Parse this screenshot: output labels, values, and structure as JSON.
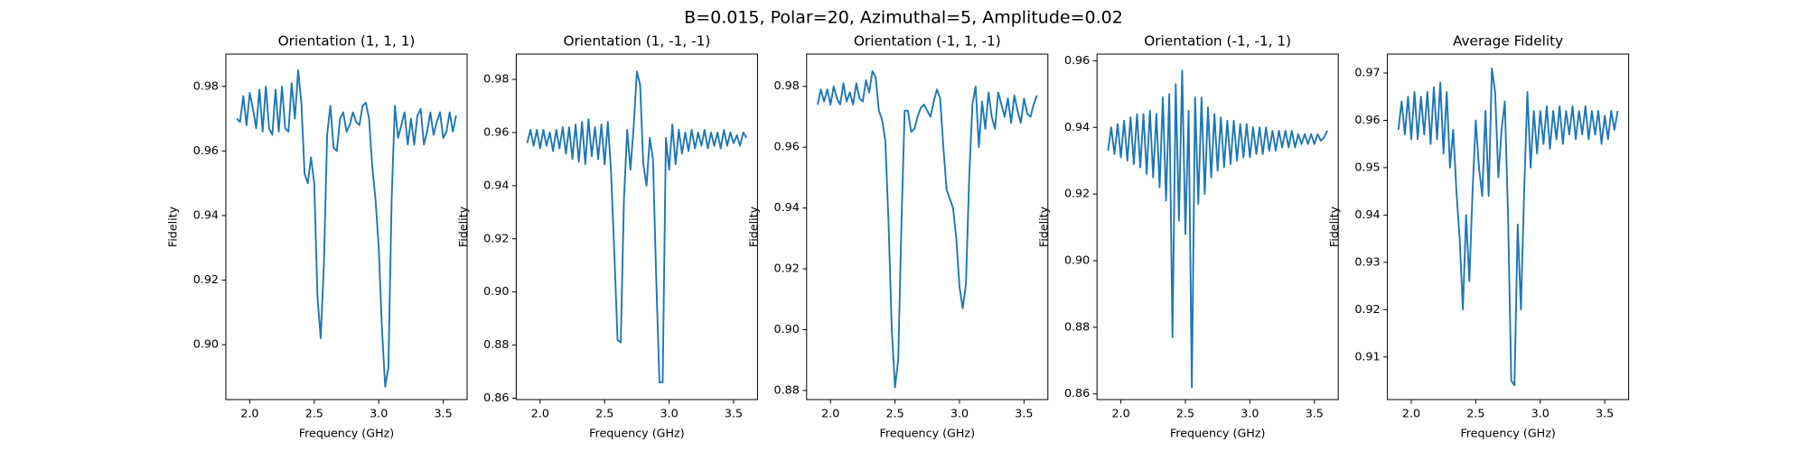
{
  "title": "B=0.015, Polar=20, Azimuthal=5, Amplitude=0.02",
  "chart_data": [
    {
      "type": "line",
      "title": "Orientation (1, 1, 1)",
      "xlabel": "Frequency (GHz)",
      "ylabel": "Fidelity",
      "color": "#1f77b4",
      "x": [
        1.9,
        1.925,
        1.95,
        1.975,
        2.0,
        2.025,
        2.05,
        2.075,
        2.1,
        2.125,
        2.15,
        2.175,
        2.2,
        2.225,
        2.25,
        2.275,
        2.3,
        2.325,
        2.35,
        2.375,
        2.4,
        2.425,
        2.45,
        2.475,
        2.5,
        2.525,
        2.55,
        2.575,
        2.6,
        2.625,
        2.65,
        2.675,
        2.7,
        2.725,
        2.75,
        2.775,
        2.8,
        2.825,
        2.85,
        2.875,
        2.9,
        2.925,
        2.95,
        2.975,
        3.0,
        3.025,
        3.05,
        3.075,
        3.1,
        3.125,
        3.15,
        3.175,
        3.2,
        3.225,
        3.25,
        3.275,
        3.3,
        3.325,
        3.35,
        3.375,
        3.4,
        3.425,
        3.45,
        3.475,
        3.5,
        3.525,
        3.55,
        3.575,
        3.6
      ],
      "values": [
        0.97,
        0.969,
        0.977,
        0.968,
        0.978,
        0.973,
        0.967,
        0.979,
        0.966,
        0.98,
        0.967,
        0.965,
        0.979,
        0.966,
        0.98,
        0.967,
        0.966,
        0.981,
        0.97,
        0.985,
        0.975,
        0.953,
        0.95,
        0.958,
        0.95,
        0.915,
        0.902,
        0.925,
        0.965,
        0.974,
        0.961,
        0.96,
        0.97,
        0.972,
        0.966,
        0.968,
        0.972,
        0.969,
        0.968,
        0.974,
        0.975,
        0.97,
        0.955,
        0.945,
        0.93,
        0.905,
        0.887,
        0.893,
        0.945,
        0.974,
        0.964,
        0.968,
        0.972,
        0.962,
        0.97,
        0.962,
        0.971,
        0.973,
        0.962,
        0.966,
        0.972,
        0.965,
        0.969,
        0.972,
        0.964,
        0.966,
        0.972,
        0.966,
        0.971
      ],
      "xlim": [
        1.815,
        3.685
      ],
      "xticks": [
        {
          "value": 2,
          "label": "2.0"
        },
        2.5,
        {
          "value": 3,
          "label": "3.0"
        },
        3.5
      ],
      "ylim": [
        0.883,
        0.99
      ],
      "yticks": [
        {
          "value": 0.9,
          "label": "0.90"
        },
        0.92,
        0.94,
        0.96,
        0.98
      ]
    },
    {
      "type": "line",
      "title": "Orientation (1, -1, -1)",
      "xlabel": "Frequency (GHz)",
      "ylabel": "Fidelity",
      "color": "#1f77b4",
      "x": [
        1.9,
        1.925,
        1.95,
        1.975,
        2.0,
        2.025,
        2.05,
        2.075,
        2.1,
        2.125,
        2.15,
        2.175,
        2.2,
        2.225,
        2.25,
        2.275,
        2.3,
        2.325,
        2.35,
        2.375,
        2.4,
        2.425,
        2.45,
        2.475,
        2.5,
        2.525,
        2.55,
        2.575,
        2.6,
        2.625,
        2.65,
        2.675,
        2.7,
        2.725,
        2.75,
        2.775,
        2.8,
        2.825,
        2.85,
        2.875,
        2.9,
        2.925,
        2.95,
        2.975,
        3.0,
        3.025,
        3.05,
        3.075,
        3.1,
        3.125,
        3.15,
        3.175,
        3.2,
        3.225,
        3.25,
        3.275,
        3.3,
        3.325,
        3.35,
        3.375,
        3.4,
        3.425,
        3.45,
        3.475,
        3.5,
        3.525,
        3.55,
        3.575,
        3.6
      ],
      "values": [
        0.956,
        0.961,
        0.955,
        0.961,
        0.954,
        0.961,
        0.955,
        0.96,
        0.953,
        0.961,
        0.954,
        0.962,
        0.952,
        0.962,
        0.95,
        0.963,
        0.949,
        0.964,
        0.948,
        0.965,
        0.951,
        0.962,
        0.95,
        0.963,
        0.948,
        0.964,
        0.945,
        0.915,
        0.882,
        0.881,
        0.935,
        0.961,
        0.946,
        0.962,
        0.983,
        0.978,
        0.948,
        0.94,
        0.958,
        0.95,
        0.905,
        0.866,
        0.866,
        0.958,
        0.946,
        0.963,
        0.948,
        0.961,
        0.952,
        0.96,
        0.953,
        0.961,
        0.954,
        0.96,
        0.955,
        0.961,
        0.954,
        0.96,
        0.955,
        0.96,
        0.954,
        0.961,
        0.955,
        0.96,
        0.956,
        0.959,
        0.955,
        0.96,
        0.958
      ],
      "xlim": [
        1.815,
        3.685
      ],
      "xticks": [
        {
          "value": 2,
          "label": "2.0"
        },
        2.5,
        {
          "value": 3,
          "label": "3.0"
        },
        3.5
      ],
      "ylim": [
        0.8595,
        0.9895
      ],
      "yticks": [
        0.86,
        0.88,
        {
          "value": 0.9,
          "label": "0.90"
        },
        0.92,
        0.94,
        0.96,
        0.98
      ]
    },
    {
      "type": "line",
      "title": "Orientation (-1, 1, -1)",
      "xlabel": "Frequency (GHz)",
      "ylabel": "Fidelity",
      "color": "#1f77b4",
      "x": [
        1.9,
        1.925,
        1.95,
        1.975,
        2.0,
        2.025,
        2.05,
        2.075,
        2.1,
        2.125,
        2.15,
        2.175,
        2.2,
        2.225,
        2.25,
        2.275,
        2.3,
        2.325,
        2.35,
        2.375,
        2.4,
        2.425,
        2.45,
        2.475,
        2.5,
        2.525,
        2.55,
        2.575,
        2.6,
        2.625,
        2.65,
        2.675,
        2.7,
        2.725,
        2.75,
        2.775,
        2.8,
        2.825,
        2.85,
        2.875,
        2.9,
        2.925,
        2.95,
        2.975,
        3.0,
        3.025,
        3.05,
        3.075,
        3.1,
        3.125,
        3.15,
        3.175,
        3.2,
        3.225,
        3.25,
        3.275,
        3.3,
        3.325,
        3.35,
        3.375,
        3.4,
        3.425,
        3.45,
        3.475,
        3.5,
        3.525,
        3.55,
        3.575,
        3.6
      ],
      "values": [
        0.974,
        0.979,
        0.975,
        0.979,
        0.974,
        0.98,
        0.976,
        0.974,
        0.981,
        0.975,
        0.978,
        0.974,
        0.981,
        0.976,
        0.975,
        0.982,
        0.978,
        0.985,
        0.983,
        0.972,
        0.969,
        0.962,
        0.935,
        0.9,
        0.881,
        0.89,
        0.935,
        0.972,
        0.972,
        0.965,
        0.966,
        0.97,
        0.973,
        0.974,
        0.972,
        0.97,
        0.975,
        0.979,
        0.976,
        0.96,
        0.946,
        0.943,
        0.94,
        0.93,
        0.914,
        0.907,
        0.915,
        0.95,
        0.974,
        0.98,
        0.96,
        0.975,
        0.966,
        0.978,
        0.97,
        0.966,
        0.978,
        0.974,
        0.97,
        0.976,
        0.968,
        0.977,
        0.972,
        0.968,
        0.976,
        0.971,
        0.97,
        0.974,
        0.977
      ],
      "xlim": [
        1.815,
        3.685
      ],
      "xticks": [
        {
          "value": 2,
          "label": "2.0"
        },
        2.5,
        {
          "value": 3,
          "label": "3.0"
        },
        3.5
      ],
      "ylim": [
        0.877,
        0.9906
      ],
      "yticks": [
        0.88,
        {
          "value": 0.9,
          "label": "0.90"
        },
        0.92,
        0.94,
        0.96,
        0.98
      ]
    },
    {
      "type": "line",
      "title": "Orientation (-1, -1, 1)",
      "xlabel": "Frequency (GHz)",
      "ylabel": "Fidelity",
      "color": "#1f77b4",
      "x": [
        1.9,
        1.925,
        1.95,
        1.975,
        2.0,
        2.025,
        2.05,
        2.075,
        2.1,
        2.125,
        2.15,
        2.175,
        2.2,
        2.225,
        2.25,
        2.275,
        2.3,
        2.325,
        2.35,
        2.375,
        2.4,
        2.425,
        2.45,
        2.475,
        2.5,
        2.525,
        2.55,
        2.575,
        2.6,
        2.625,
        2.65,
        2.675,
        2.7,
        2.725,
        2.75,
        2.775,
        2.8,
        2.825,
        2.85,
        2.875,
        2.9,
        2.925,
        2.95,
        2.975,
        3.0,
        3.025,
        3.05,
        3.075,
        3.1,
        3.125,
        3.15,
        3.175,
        3.2,
        3.225,
        3.25,
        3.275,
        3.3,
        3.325,
        3.35,
        3.375,
        3.4,
        3.425,
        3.45,
        3.475,
        3.5,
        3.525,
        3.55,
        3.575,
        3.6
      ],
      "values": [
        0.933,
        0.94,
        0.932,
        0.941,
        0.931,
        0.942,
        0.93,
        0.943,
        0.929,
        0.944,
        0.928,
        0.944,
        0.926,
        0.945,
        0.925,
        0.944,
        0.922,
        0.949,
        0.918,
        0.95,
        0.877,
        0.953,
        0.912,
        0.957,
        0.908,
        0.945,
        0.862,
        0.949,
        0.917,
        0.949,
        0.92,
        0.946,
        0.925,
        0.944,
        0.927,
        0.943,
        0.928,
        0.942,
        0.929,
        0.942,
        0.93,
        0.941,
        0.931,
        0.941,
        0.931,
        0.94,
        0.932,
        0.94,
        0.932,
        0.94,
        0.933,
        0.939,
        0.933,
        0.939,
        0.934,
        0.939,
        0.934,
        0.939,
        0.934,
        0.938,
        0.935,
        0.938,
        0.935,
        0.938,
        0.935,
        0.938,
        0.936,
        0.937,
        0.939
      ],
      "xlim": [
        1.815,
        3.685
      ],
      "xticks": [
        {
          "value": 2,
          "label": "2.0"
        },
        2.5,
        {
          "value": 3,
          "label": "3.0"
        },
        3.5
      ],
      "ylim": [
        0.8583,
        0.962
      ],
      "yticks": [
        0.86,
        0.88,
        {
          "value": 0.9,
          "label": "0.90"
        },
        0.92,
        0.94,
        0.96
      ]
    },
    {
      "type": "line",
      "title": "Average Fidelity",
      "xlabel": "Frequency (GHz)",
      "ylabel": "Fidelity",
      "color": "#1f77b4",
      "x": [
        1.9,
        1.925,
        1.95,
        1.975,
        2.0,
        2.025,
        2.05,
        2.075,
        2.1,
        2.125,
        2.15,
        2.175,
        2.2,
        2.225,
        2.25,
        2.275,
        2.3,
        2.325,
        2.35,
        2.375,
        2.4,
        2.425,
        2.45,
        2.475,
        2.5,
        2.525,
        2.55,
        2.575,
        2.6,
        2.625,
        2.65,
        2.675,
        2.7,
        2.725,
        2.75,
        2.775,
        2.8,
        2.825,
        2.85,
        2.875,
        2.9,
        2.925,
        2.95,
        2.975,
        3.0,
        3.025,
        3.05,
        3.075,
        3.1,
        3.125,
        3.15,
        3.175,
        3.2,
        3.225,
        3.25,
        3.275,
        3.3,
        3.325,
        3.35,
        3.375,
        3.4,
        3.425,
        3.45,
        3.475,
        3.5,
        3.525,
        3.55,
        3.575,
        3.6
      ],
      "values": [
        0.958,
        0.964,
        0.957,
        0.965,
        0.956,
        0.966,
        0.956,
        0.965,
        0.957,
        0.966,
        0.955,
        0.967,
        0.956,
        0.968,
        0.953,
        0.966,
        0.95,
        0.958,
        0.945,
        0.935,
        0.92,
        0.94,
        0.926,
        0.945,
        0.96,
        0.95,
        0.944,
        0.962,
        0.944,
        0.971,
        0.966,
        0.948,
        0.958,
        0.964,
        0.94,
        0.905,
        0.904,
        0.938,
        0.92,
        0.945,
        0.966,
        0.95,
        0.962,
        0.953,
        0.962,
        0.955,
        0.963,
        0.954,
        0.962,
        0.956,
        0.963,
        0.955,
        0.962,
        0.957,
        0.963,
        0.956,
        0.962,
        0.957,
        0.963,
        0.956,
        0.962,
        0.957,
        0.962,
        0.955,
        0.961,
        0.956,
        0.962,
        0.958,
        0.962
      ],
      "xlim": [
        1.815,
        3.685
      ],
      "xticks": [
        {
          "value": 2,
          "label": "2.0"
        },
        2.5,
        {
          "value": 3,
          "label": "3.0"
        },
        3.5
      ],
      "ylim": [
        0.901,
        0.974
      ],
      "yticks": [
        0.91,
        0.92,
        0.93,
        0.94,
        0.95,
        0.96,
        0.97
      ]
    }
  ]
}
